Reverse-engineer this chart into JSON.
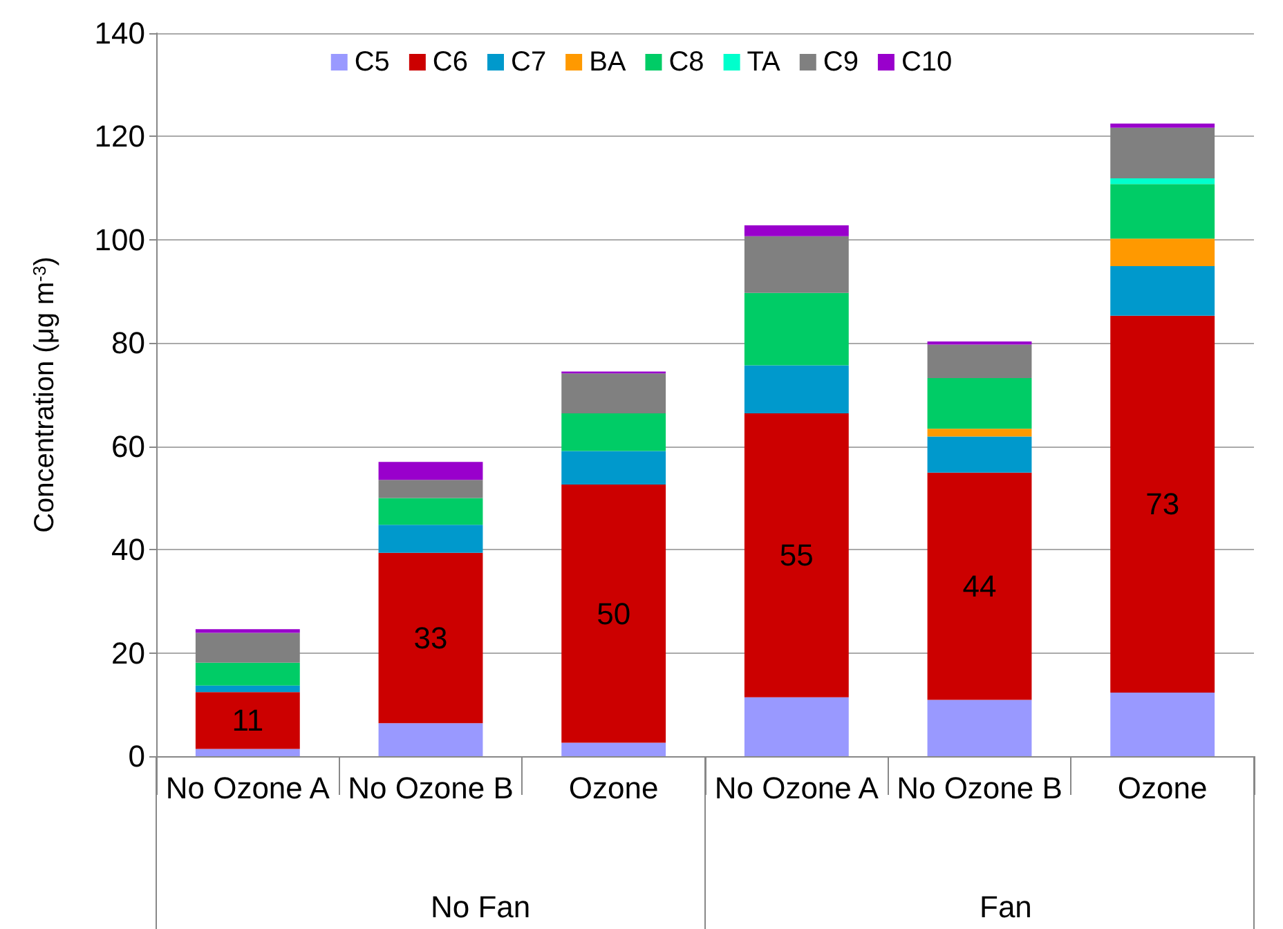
{
  "chart_data": {
    "type": "bar",
    "stacked": true,
    "ylabel": "Concentration (μg m$^{-3}$)",
    "categories": [
      "No Ozone A",
      "No Ozone B",
      "Ozone",
      "No Ozone A",
      "No Ozone B",
      "Ozone"
    ],
    "annotations": [
      "No Fan",
      "Fan"
    ],
    "ylim": [
      0,
      140
    ],
    "yticks": [
      0,
      20,
      40,
      60,
      80,
      100,
      120,
      140
    ],
    "grid": "y",
    "legend": "top",
    "series": [
      {
        "name": "C5",
        "color": "#9999ff",
        "values": [
          1.4,
          6.4,
          2.6,
          11.4,
          10.9,
          12.3
        ]
      },
      {
        "name": "C6",
        "color": "#cc0000",
        "values": [
          11,
          33,
          50,
          55,
          44,
          73
        ],
        "value_labels": [
          "11",
          "33",
          "50",
          "55",
          "44",
          "73"
        ]
      },
      {
        "name": "C7",
        "color": "#0099cc",
        "values": [
          1.3,
          5.4,
          6.5,
          9.3,
          7.0,
          9.6
        ]
      },
      {
        "name": "BA",
        "color": "#ff9900",
        "values": [
          0,
          0,
          0,
          0,
          1.5,
          5.3
        ]
      },
      {
        "name": "C8",
        "color": "#00cc66",
        "values": [
          4.4,
          5.2,
          7.3,
          14.0,
          9.8,
          10.6
        ]
      },
      {
        "name": "TA",
        "color": "#00ffcc",
        "values": [
          0,
          0,
          0,
          0,
          0,
          1.1
        ]
      },
      {
        "name": "C9",
        "color": "#808080",
        "values": [
          5.8,
          3.5,
          7.7,
          11.0,
          6.5,
          9.8
        ]
      },
      {
        "name": "C10",
        "color": "#9900cc",
        "values": [
          0.7,
          3.5,
          0.4,
          2.1,
          0.6,
          0.8
        ]
      }
    ]
  }
}
